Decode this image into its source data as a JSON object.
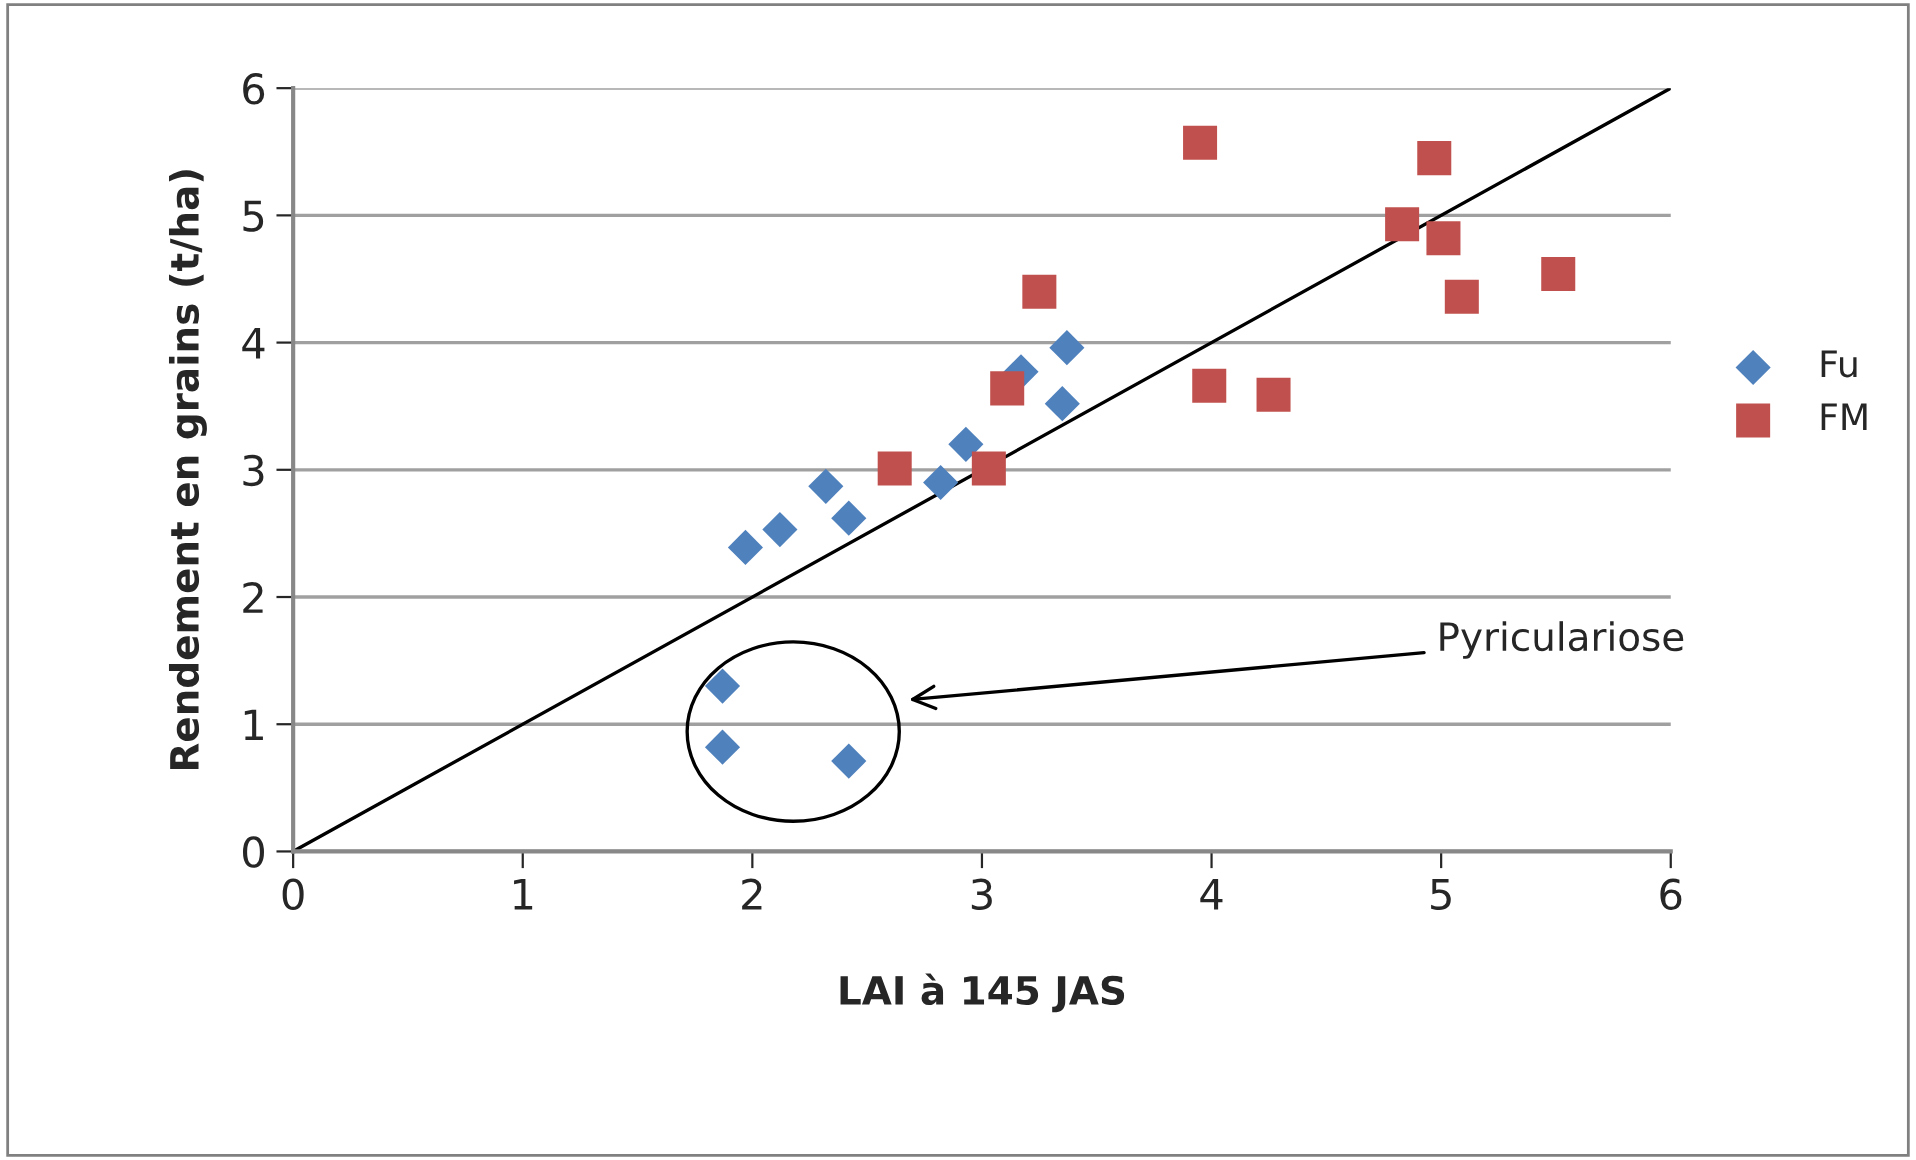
{
  "chart_data": {
    "type": "scatter",
    "xlabel": "LAI à 145 JAS",
    "ylabel": "Rendement en grains (t/ha)",
    "xlim": [
      0,
      6
    ],
    "ylim": [
      0,
      6
    ],
    "xticks": [
      0,
      1,
      2,
      3,
      4,
      5,
      6
    ],
    "yticks": [
      0,
      1,
      2,
      3,
      4,
      5,
      6
    ],
    "grid": "y",
    "legend": "right",
    "series": [
      {
        "name": "Fu",
        "color": "#4f81bd",
        "marker": "diamond",
        "x": [
          1.97,
          2.12,
          2.32,
          2.42,
          2.82,
          2.93,
          3.17,
          3.35,
          3.37,
          1.87,
          1.87,
          2.42
        ],
        "values": [
          2.39,
          2.53,
          2.87,
          2.62,
          2.9,
          3.2,
          3.77,
          3.52,
          3.96,
          1.3,
          0.82,
          0.71
        ]
      },
      {
        "name": "FM",
        "color": "#c0504d",
        "marker": "square",
        "x": [
          2.62,
          3.03,
          3.11,
          3.25,
          3.95,
          3.99,
          4.27,
          4.83,
          4.97,
          5.01,
          5.09,
          5.51
        ],
        "values": [
          3.01,
          3.01,
          3.64,
          4.4,
          5.57,
          3.66,
          3.59,
          4.93,
          5.45,
          4.82,
          4.36,
          4.54
        ]
      },
      {
        "type": "line",
        "color": "#000000",
        "marker": "none",
        "x": [
          0,
          6
        ],
        "values": [
          0,
          6
        ]
      }
    ],
    "annotations": [
      "Pyriculariose"
    ]
  }
}
